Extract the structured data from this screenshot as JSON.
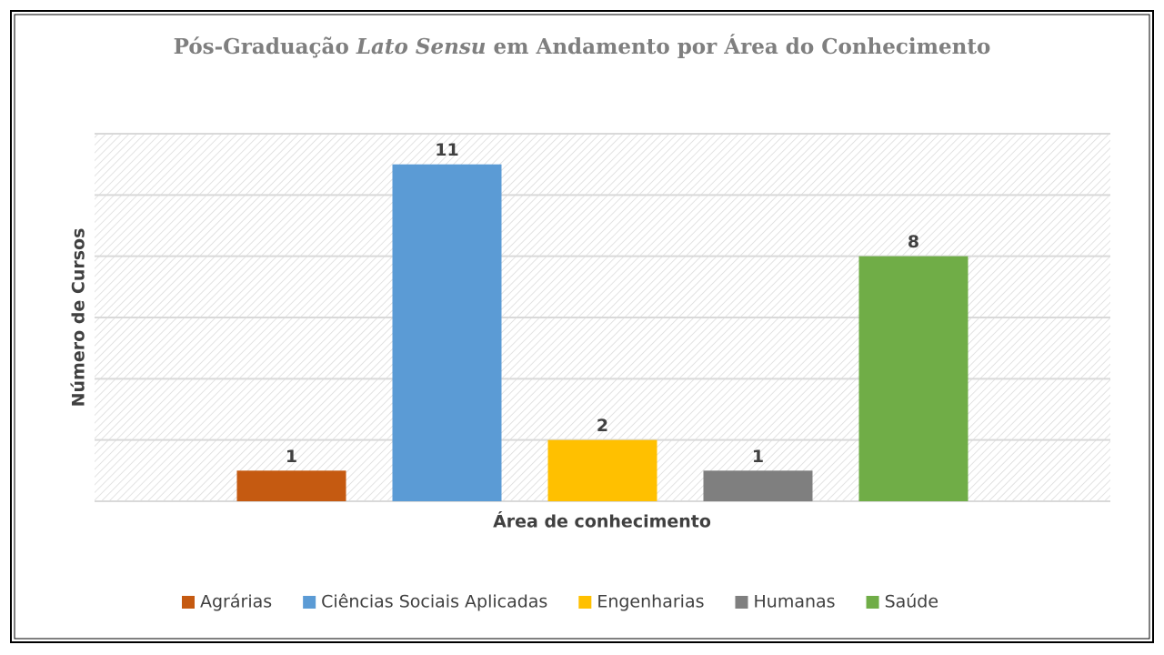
{
  "chart_data": {
    "type": "bar",
    "title": [
      "Pós-Graduação",
      "Lato Sensu",
      "em Andamento por Área do Conhecimento"
    ],
    "x_label": "Área de conhecimento",
    "y_label": "Número de Cursos",
    "categories": [
      null
    ],
    "series": [
      {
        "name": "Agrárias",
        "color": "#c55a11",
        "values": [
          1
        ]
      },
      {
        "name": "Ciências Sociais Aplicadas",
        "color": "#5b9bd5",
        "values": [
          11
        ]
      },
      {
        "name": "Engenharias",
        "color": "#ffc000",
        "values": [
          2
        ]
      },
      {
        "name": "Humanas",
        "color": "#7f7f7f",
        "values": [
          1
        ]
      },
      {
        "name": "Saúde",
        "color": "#70ad47",
        "values": [
          8
        ]
      }
    ],
    "ylim": [
      0,
      12
    ],
    "yticks": [
      0,
      2,
      4,
      6,
      8,
      10,
      12
    ],
    "grid": true,
    "legend": "bottom"
  }
}
